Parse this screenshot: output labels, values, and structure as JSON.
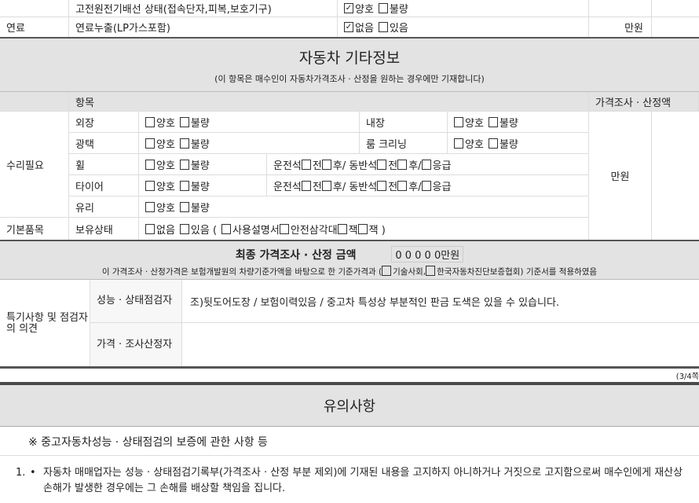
{
  "top_rows": [
    {
      "category": "",
      "item": "고전원전기배선 상태(접속단자,피복,보호기구)",
      "options": [
        {
          "label": "양호",
          "checked": true
        },
        {
          "label": "불량",
          "checked": false
        }
      ],
      "price": ""
    },
    {
      "category": "연료",
      "item": "연료누출(LP가스포함)",
      "options": [
        {
          "label": "없음",
          "checked": true
        },
        {
          "label": "있음",
          "checked": false
        }
      ],
      "price": "만원"
    }
  ],
  "other_info": {
    "title": "자동차 기타정보",
    "subtitle": "(이 항목은 매수인이 자동차가격조사 · 산정을 원하는 경우에만 기재합니다)",
    "header_item": "항목",
    "header_price": "가격조사 · 산정액",
    "price_unit": "만원",
    "repair_label": "수리필요",
    "basic_label": "기본품목",
    "good": "양호",
    "bad": "불량",
    "exterior": "외장",
    "interior": "내장",
    "gloss": "광택",
    "room_cleaning": "룸 크리닝",
    "wheel": "휠",
    "tire": "타이어",
    "glass": "유리",
    "wheel_detail": [
      "운전석",
      "전",
      "후/ 동반석",
      "전",
      "후/",
      "응급"
    ],
    "possession": "보유상태",
    "none": "없음",
    "have": "있음 (",
    "manual": "사용설명서",
    "triangle": "안전삼각대",
    "jack": "잭",
    "spanner": "잭 )"
  },
  "final": {
    "title": "최종 가격조사 · 산정 금액",
    "amount": "0 0 0 0 0",
    "unit": "만원",
    "note_pre": "이 가격조사 · 산정가격은 보험개발원의 차량기준가액을 바탕으로 한 기준가격과 (",
    "opt1": "기술사회,",
    "opt2": "한국자동차진단보증협회) 기준서를 적용하였음"
  },
  "remarks": {
    "label": "특기사항 및 점검자의 의견",
    "inspector": "성능 · 상태점검자",
    "inspector_text": "조)뒷도어도장 / 보험이력있음 / 중고차 특성상 부분적인 판금 도색은 있을 수 있습니다.",
    "appraiser": "가격 · 조사산정자",
    "appraiser_text": ""
  },
  "page": "(3/4쪽",
  "notice": {
    "title": "유의사항",
    "subtitle": "※ 중고자동차성능 · 상태점검의 보증에 관한 사항 등",
    "items": [
      {
        "num": "1.",
        "text": "자동차 매매업자는 성능 · 상태점검기록부(가격조사 · 산정 부분 제외)에 기재된 내용을 고지하지 아니하거나 거짓으로 고지함으로써 매수인에게 재산상 손해가 발생한 경우에는 그 손해를 배상할 책임을 집니다."
      }
    ]
  }
}
